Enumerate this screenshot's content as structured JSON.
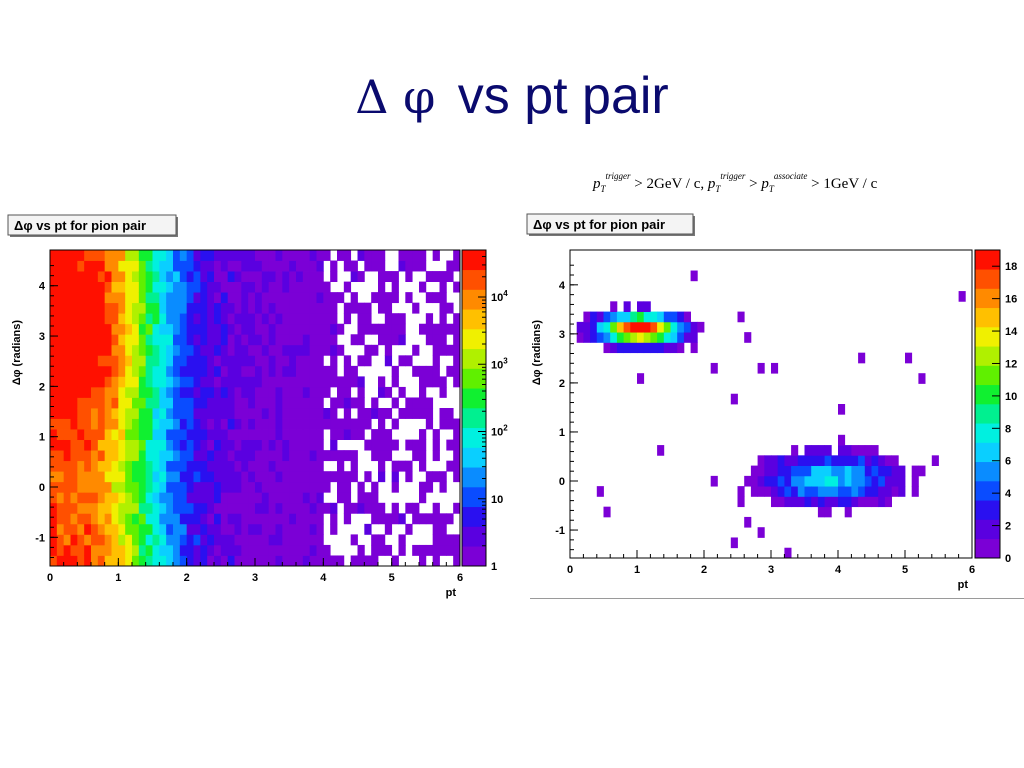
{
  "slide": {
    "title_symbols": "Δ φ",
    "title_text": "vs pt pair"
  },
  "formula": {
    "p1": "p",
    "sub1": "T",
    "sup1": "trigger",
    "t1": "> 2GeV / c,",
    "p2": "p",
    "sub2": "T",
    "sup2": "trigger",
    "t2": ">",
    "p3": "p",
    "sub3": "T",
    "sup3": "associate",
    "t3": "> 1GeV / c"
  },
  "chart_data": [
    {
      "type": "heatmap",
      "title": "Δφ vs pt for pion pair",
      "xlabel": "pt",
      "ylabel": "Δφ (radians)",
      "xlim": [
        0,
        6
      ],
      "ylim": [
        -1.57,
        4.71
      ],
      "xticks": [
        "0",
        "1",
        "2",
        "3",
        "4",
        "5",
        "6"
      ],
      "yticks": [
        "-1",
        "0",
        "1",
        "2",
        "3",
        "4"
      ],
      "z_scale": "log",
      "z_range": [
        1,
        50000
      ],
      "colorbar_ticks": [
        "1",
        "10",
        "10^2",
        "10^3",
        "10^4"
      ],
      "grid": false,
      "description_of_distribution": "Dense band peaking near pt 0.5-1 at all Δφ; counts fall off with pt; sparse above pt ≈ 4.5"
    },
    {
      "type": "heatmap",
      "title": "Δφ vs pt for pion pair",
      "xlabel": "pt",
      "ylabel": "Δφ (radians)",
      "xlim": [
        0,
        6
      ],
      "ylim": [
        -1.57,
        4.71
      ],
      "xticks": [
        "0",
        "1",
        "2",
        "3",
        "4",
        "5",
        "6"
      ],
      "yticks": [
        "-1",
        "0",
        "1",
        "2",
        "3",
        "4"
      ],
      "z_scale": "linear",
      "z_range": [
        0,
        19
      ],
      "colorbar_ticks": [
        "0",
        "2",
        "4",
        "6",
        "8",
        "10",
        "12",
        "14",
        "16",
        "18"
      ],
      "grid": false,
      "description_of_distribution": "Away-side peak near Δφ≈3.1 at pt 0.5-2; near-side peak near Δφ≈0 at pt 3-5.5"
    }
  ]
}
